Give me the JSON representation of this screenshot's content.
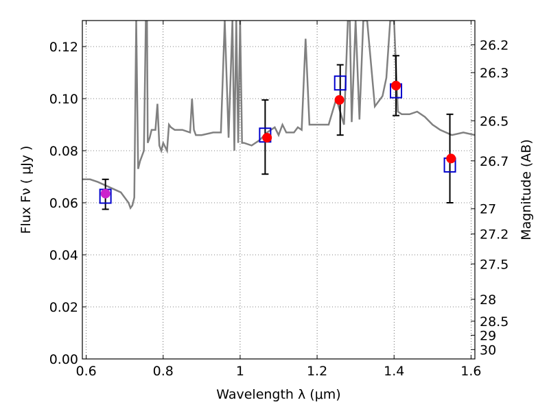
{
  "chart_data": {
    "type": "scatter",
    "xlabel": "Wavelength  λ (μm)",
    "ylabel": "Flux  Fν  ( μJy )",
    "y2label": "Magnitude (AB)",
    "xlim": [
      0.59,
      1.61
    ],
    "ylim": [
      0.0,
      0.13
    ],
    "grid": true,
    "x_ticks": [
      0.6,
      0.8,
      1.0,
      1.2,
      1.4,
      1.6
    ],
    "x_tick_labels": [
      "0.6",
      "0.8",
      "1",
      "1.2",
      "1.4",
      "1.6"
    ],
    "y_ticks": [
      0.0,
      0.02,
      0.04,
      0.06,
      0.08,
      0.1,
      0.12
    ],
    "y_tick_labels": [
      "0.00",
      "0.02",
      "0.04",
      "0.06",
      "0.08",
      "0.10",
      "0.12"
    ],
    "y2_ticks": [
      {
        "label": "26.2",
        "flux": 0.1207
      },
      {
        "label": "26.3",
        "flux": 0.11
      },
      {
        "label": "26.5",
        "flux": 0.0915
      },
      {
        "label": "26.7",
        "flux": 0.0761
      },
      {
        "label": "27",
        "flux": 0.0577
      },
      {
        "label": "27.2",
        "flux": 0.048
      },
      {
        "label": "27.5",
        "flux": 0.0365
      },
      {
        "label": "28",
        "flux": 0.0229
      },
      {
        "label": "28.5",
        "flux": 0.0145
      },
      {
        "label": "29",
        "flux": 0.0091
      },
      {
        "label": "30",
        "flux": 0.0036
      }
    ],
    "observed": {
      "x": [
        0.65,
        1.065,
        1.26,
        1.405,
        1.545
      ],
      "y": [
        0.0625,
        0.086,
        0.106,
        0.103,
        0.0745
      ],
      "yerr_low": [
        0.0575,
        0.071,
        0.086,
        0.0935,
        0.06
      ],
      "yerr_high": [
        0.069,
        0.0995,
        0.113,
        0.1165,
        0.094
      ],
      "color": "#0000cc"
    },
    "model": {
      "x": [
        0.65,
        1.07,
        1.258,
        1.405,
        1.548
      ],
      "y": [
        0.0635,
        0.085,
        0.0995,
        0.105,
        0.077
      ],
      "color": "#ff0000"
    },
    "spectrum": {
      "color": "#808080",
      "x": [
        0.59,
        0.61,
        0.63,
        0.66,
        0.69,
        0.71,
        0.715,
        0.72,
        0.725,
        0.73,
        0.735,
        0.74,
        0.745,
        0.75,
        0.755,
        0.758,
        0.76,
        0.765,
        0.77,
        0.78,
        0.785,
        0.79,
        0.795,
        0.8,
        0.81,
        0.815,
        0.82,
        0.83,
        0.85,
        0.87,
        0.875,
        0.88,
        0.885,
        0.9,
        0.93,
        0.95,
        0.96,
        0.97,
        0.98,
        0.985,
        0.99,
        0.995,
        1.0,
        1.005,
        1.01,
        1.03,
        1.05,
        1.07,
        1.09,
        1.1,
        1.11,
        1.12,
        1.14,
        1.15,
        1.16,
        1.17,
        1.18,
        1.2,
        1.23,
        1.25,
        1.27,
        1.28,
        1.285,
        1.29,
        1.3,
        1.31,
        1.32,
        1.33,
        1.35,
        1.37,
        1.38,
        1.39,
        1.4,
        1.41,
        1.42,
        1.44,
        1.46,
        1.48,
        1.5,
        1.52,
        1.55,
        1.58,
        1.61
      ],
      "y": [
        0.069,
        0.069,
        0.068,
        0.066,
        0.064,
        0.06,
        0.058,
        0.059,
        0.062,
        0.13,
        0.073,
        0.076,
        0.078,
        0.08,
        0.13,
        0.13,
        0.083,
        0.085,
        0.088,
        0.088,
        0.098,
        0.082,
        0.08,
        0.083,
        0.08,
        0.09,
        0.089,
        0.088,
        0.088,
        0.087,
        0.1,
        0.088,
        0.086,
        0.086,
        0.087,
        0.087,
        0.13,
        0.085,
        0.13,
        0.08,
        0.13,
        0.083,
        0.13,
        0.083,
        0.083,
        0.082,
        0.084,
        0.087,
        0.089,
        0.086,
        0.09,
        0.087,
        0.087,
        0.089,
        0.088,
        0.123,
        0.09,
        0.09,
        0.09,
        0.1,
        0.09,
        0.13,
        0.13,
        0.091,
        0.13,
        0.092,
        0.13,
        0.13,
        0.097,
        0.101,
        0.108,
        0.13,
        0.13,
        0.095,
        0.094,
        0.094,
        0.095,
        0.093,
        0.09,
        0.088,
        0.086,
        0.087,
        0.086
      ]
    }
  }
}
